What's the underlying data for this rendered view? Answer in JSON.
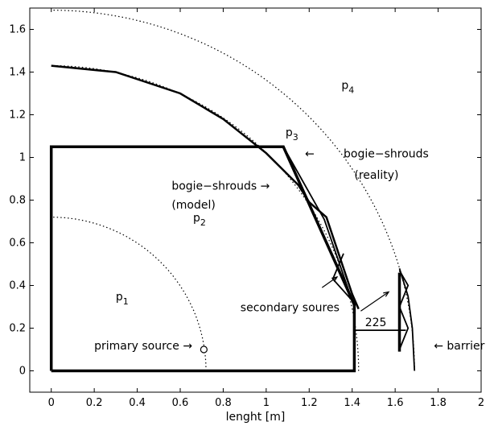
{
  "chart_data": {
    "type": "line",
    "xlabel": "lenght [m]",
    "ylabel": "",
    "xlim": [
      -0.1,
      2.0
    ],
    "ylim": [
      -0.1,
      1.7
    ],
    "x_ticks": [
      0,
      0.2,
      0.4,
      0.6,
      0.8,
      1,
      1.2,
      1.4,
      1.6,
      1.8,
      2
    ],
    "y_ticks": [
      0,
      0.2,
      0.4,
      0.6,
      0.8,
      1,
      1.2,
      1.4,
      1.6
    ],
    "x_tick_labels": [
      "0",
      "0.2",
      "0.4",
      "0.6",
      "0.8",
      "1",
      "1.2",
      "1.4",
      "1.6",
      "1.8",
      "2"
    ],
    "y_tick_labels": [
      "0",
      "0.2",
      "0.4",
      "0.6",
      "0.8",
      "1",
      "1.2",
      "1.4",
      "1.6"
    ],
    "series": [
      {
        "style": "thick",
        "x": [
          0,
          0,
          1.08,
          1.41,
          1.41,
          0,
          0
        ],
        "y": [
          0,
          1.05,
          1.05,
          0.31,
          0,
          0,
          0
        ]
      },
      {
        "style": "medium",
        "x": [
          0,
          0.3,
          0.6,
          0.8,
          1.0,
          1.15,
          1.2,
          1.28,
          1.4,
          1.43
        ],
        "y": [
          1.43,
          1.4,
          1.3,
          1.18,
          1.02,
          0.87,
          0.79,
          0.72,
          0.36,
          0.29
        ]
      },
      {
        "style": "thin",
        "x": [
          1.08,
          1.27,
          1.41
        ],
        "y": [
          1.05,
          0.71,
          0.3
        ]
      },
      {
        "style": "thin",
        "x": [
          1.36,
          1.31,
          1.4,
          1.41
        ],
        "y": [
          0.55,
          0.43,
          0.33,
          0.3
        ]
      },
      {
        "style": "thick",
        "x": [
          1.62,
          1.62
        ],
        "y": [
          0.09,
          0.46
        ]
      },
      {
        "style": "thin",
        "x": [
          1.62,
          1.66,
          1.68,
          1.69
        ],
        "y": [
          0.48,
          0.35,
          0.2,
          0.0
        ]
      },
      {
        "style": "thin",
        "x": [
          1.62,
          1.66,
          1.62,
          1.66,
          1.62
        ],
        "y": [
          0.47,
          0.4,
          0.3,
          0.2,
          0.1
        ]
      },
      {
        "style": "thin",
        "x": [
          1.41,
          1.65
        ],
        "y": [
          0.19,
          0.19
        ]
      },
      {
        "style": "thin",
        "x": [
          1.41,
          1.41
        ],
        "y": [
          0.14,
          0.26
        ]
      }
    ],
    "dotted_arcs": [
      {
        "radius": 0.72
      },
      {
        "radius": 1.43
      },
      {
        "radius": 1.69
      }
    ],
    "point": {
      "x": 0.71,
      "y": 0.1
    },
    "annotations": [
      {
        "id": "p1",
        "text": "p",
        "sub": "1",
        "x": 0.3,
        "y": 0.33
      },
      {
        "id": "p2",
        "text": "p",
        "sub": "2",
        "x": 0.66,
        "y": 0.7
      },
      {
        "id": "p3",
        "text": "p",
        "sub": "3",
        "x": 1.09,
        "y": 1.1
      },
      {
        "id": "p4",
        "text": "p",
        "sub": "4",
        "x": 1.35,
        "y": 1.32
      },
      {
        "id": "bogie-model-1",
        "text": "bogie−shrouds →",
        "x": 0.56,
        "y": 0.85
      },
      {
        "id": "bogie-model-2",
        "text": "(model)",
        "x": 0.56,
        "y": 0.76
      },
      {
        "id": "bogie-reality-arrow",
        "text": "←",
        "x": 1.18,
        "y": 1.0
      },
      {
        "id": "bogie-reality-1",
        "text": "bogie−shrouds",
        "x": 1.36,
        "y": 1.0
      },
      {
        "id": "bogie-reality-2",
        "text": "(reality)",
        "x": 1.41,
        "y": 0.9
      },
      {
        "id": "secondary",
        "text": "secondary soures",
        "x": 0.88,
        "y": 0.28
      },
      {
        "id": "dim-225",
        "text": "225",
        "x": 1.46,
        "y": 0.21
      },
      {
        "id": "primary",
        "text": "primary source →",
        "x": 0.2,
        "y": 0.1
      },
      {
        "id": "barrier",
        "text": "← barrier",
        "x": 1.78,
        "y": 0.1
      }
    ],
    "arrows": [
      {
        "from": [
          1.26,
          0.39
        ],
        "to": [
          1.33,
          0.44
        ]
      },
      {
        "from": [
          1.44,
          0.28
        ],
        "to": [
          1.57,
          0.37
        ]
      }
    ]
  }
}
